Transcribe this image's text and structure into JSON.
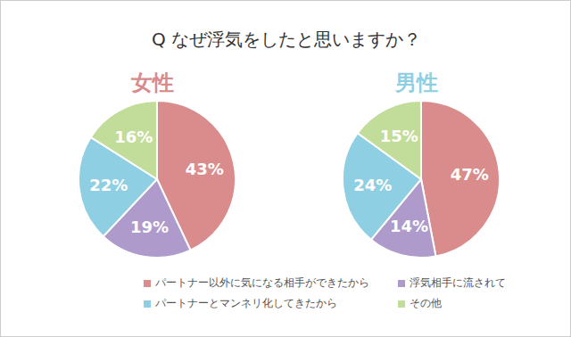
{
  "title": "Q なぜ浮気をしたと思いますか？",
  "chart_data": [
    {
      "type": "pie",
      "title": "女性",
      "categories": [
        "パートナー以外に気になる相手ができたから",
        "浮気相手に流されて",
        "パートナーとマンネリ化してきたから",
        "その他"
      ],
      "values": [
        43,
        19,
        22,
        16
      ],
      "value_labels": [
        "43%",
        "19%",
        "22%",
        "16%"
      ],
      "colors": [
        "#da8c8c",
        "#ae9acb",
        "#8ecfe3",
        "#c2dc9a"
      ],
      "color": "#d98a8a",
      "data_labels": true
    },
    {
      "type": "pie",
      "title": "男性",
      "categories": [
        "パートナー以外に気になる相手ができたから",
        "浮気相手に流されて",
        "パートナーとマンネリ化してきたから",
        "その他"
      ],
      "values": [
        47,
        14,
        24,
        15
      ],
      "value_labels": [
        "47%",
        "14%",
        "24%",
        "15%"
      ],
      "colors": [
        "#da8c8c",
        "#ae9acb",
        "#8ecfe3",
        "#c2dc9a"
      ],
      "color": "#8ecfe3",
      "data_labels": true
    }
  ]
}
